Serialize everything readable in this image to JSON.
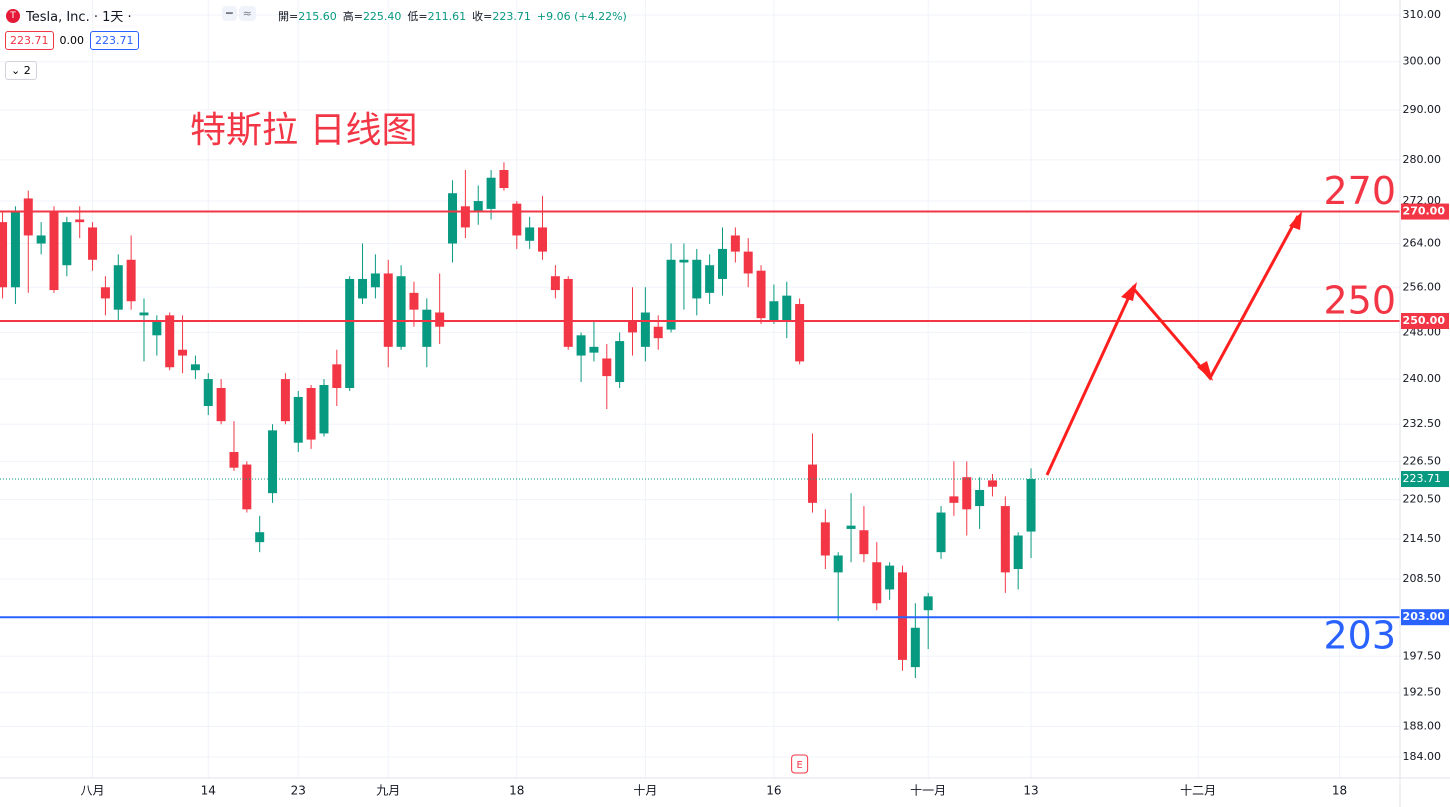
{
  "header": {
    "symbol": "Tesla, Inc. · 1天 ·",
    "ohlc_labels": [
      "開=",
      "高=",
      "低=",
      "收="
    ],
    "ohlc_values": [
      "215.60",
      "225.40",
      "211.61",
      "223.71"
    ],
    "change": "+9.06 (+4.22%)",
    "boxes": [
      "223.71",
      "0.00",
      "223.71"
    ],
    "indicator": "2"
  },
  "chart_data": {
    "type": "candlestick",
    "title": "特斯拉 日线图",
    "log_scale": true,
    "grid": true,
    "up_color": "#089981",
    "down_color": "#f23645",
    "open": [
      268,
      256,
      272.5,
      264,
      270,
      260,
      268.5,
      267,
      256,
      252,
      261,
      251,
      247.5,
      251,
      245,
      241.5,
      235.5,
      238.5,
      228,
      226,
      214,
      221.5,
      240,
      229.5,
      238.5,
      231,
      242.5,
      238.5,
      254,
      256,
      258.5,
      245.5,
      255,
      245.5,
      251.5,
      264,
      271,
      270,
      270.5,
      278,
      271.5,
      264.5,
      267,
      258,
      257.5,
      244,
      244.5,
      243.5,
      239.5,
      250,
      245.5,
      249,
      248.5,
      260.5,
      254,
      255,
      257.5,
      265.5,
      262.5,
      259,
      250,
      250,
      253,
      226,
      217,
      209.5,
      216,
      215.8,
      211,
      207,
      209.5,
      196,
      204,
      212.5,
      221,
      224,
      219.5,
      223.5,
      219.5,
      210,
      215.6
    ],
    "high": [
      270,
      271,
      274,
      268,
      271,
      269,
      271,
      268,
      258,
      262,
      265.5,
      254,
      251,
      251.5,
      251,
      244,
      241,
      240,
      233,
      226.5,
      218,
      232.5,
      241,
      238,
      239,
      240,
      245,
      258,
      264,
      262,
      261,
      260,
      257,
      254,
      258.5,
      276,
      278,
      275,
      278,
      279.5,
      272,
      269,
      273,
      260,
      258,
      248,
      250,
      246,
      248,
      256,
      256,
      251,
      264,
      264,
      263,
      262,
      267,
      267,
      265,
      260,
      256.5,
      257,
      254,
      231,
      219,
      212.5,
      221.5,
      219.5,
      214,
      211,
      210.5,
      205,
      206.5,
      219.5,
      226.5,
      226.5,
      224,
      224.5,
      221,
      215.5,
      225.4
    ],
    "low": [
      254,
      253,
      255,
      262,
      255,
      258,
      265,
      259,
      251,
      250,
      252,
      243,
      244,
      241.5,
      241,
      240,
      234,
      232.5,
      225,
      218.5,
      212.5,
      220,
      232.5,
      228,
      228.5,
      230.5,
      235.5,
      238,
      253,
      254,
      242,
      245,
      249,
      242,
      246,
      260.5,
      265,
      267.5,
      268.5,
      274,
      263,
      263,
      261,
      254,
      245,
      239.5,
      243,
      235,
      238.5,
      244,
      243,
      245,
      248,
      252,
      251,
      253,
      254.5,
      260.5,
      256,
      249.5,
      249.5,
      247,
      242.5,
      218.5,
      210,
      202.5,
      211,
      211,
      204,
      205.5,
      195.5,
      194.5,
      198.5,
      211.5,
      218,
      215,
      216,
      221,
      206.5,
      207,
      211.61
    ],
    "close": [
      256,
      270,
      265.5,
      265.5,
      255.5,
      268,
      268,
      261,
      254,
      260,
      253.5,
      251.5,
      250,
      242,
      244,
      242.5,
      240,
      233,
      225.5,
      219,
      215.5,
      231.5,
      233,
      237,
      230,
      239,
      238.5,
      257.5,
      257.5,
      258.5,
      245.5,
      258,
      252,
      252,
      249,
      273.5,
      267,
      272,
      276.5,
      274.5,
      265.5,
      267,
      262.5,
      255.5,
      245.5,
      247.5,
      245.5,
      240.5,
      246.5,
      248,
      251.5,
      247,
      261,
      261,
      261,
      260,
      263,
      262.5,
      258.5,
      250.5,
      253.5,
      254.5,
      243,
      220,
      212,
      212,
      216.5,
      212.2,
      205,
      210.5,
      197,
      201.5,
      206,
      218.5,
      220,
      219,
      222,
      222.5,
      209.5,
      215,
      223.71
    ],
    "ylim": [
      181.3,
      313.3
    ],
    "yticks": [
      {
        "value": 310,
        "label": "310.00"
      },
      {
        "value": 300,
        "label": "300.00"
      },
      {
        "value": 290,
        "label": "290.00"
      },
      {
        "value": 280,
        "label": "280.00"
      },
      {
        "value": 272,
        "label": "272.00"
      },
      {
        "value": 264,
        "label": "264.00"
      },
      {
        "value": 256,
        "label": "256.00"
      },
      {
        "value": 248,
        "label": "248.00"
      },
      {
        "value": 240,
        "label": "240.00"
      },
      {
        "value": 232.5,
        "label": "232.50"
      },
      {
        "value": 226.5,
        "label": "226.50"
      },
      {
        "value": 220.5,
        "label": "220.50"
      },
      {
        "value": 214.5,
        "label": "214.50"
      },
      {
        "value": 208.5,
        "label": "208.50"
      },
      {
        "value": 197.5,
        "label": "197.50"
      },
      {
        "value": 192.5,
        "label": "192.50"
      },
      {
        "value": 188,
        "label": "188.00"
      },
      {
        "value": 184,
        "label": "184.00"
      }
    ],
    "xlim": [
      -0.2,
      108.7
    ],
    "xticks": [
      {
        "value": 7,
        "label": "八月"
      },
      {
        "value": 16,
        "label": "14"
      },
      {
        "value": 23,
        "label": "23"
      },
      {
        "value": 30,
        "label": "九月"
      },
      {
        "value": 40,
        "label": "18"
      },
      {
        "value": 50,
        "label": "十月"
      },
      {
        "value": 60,
        "label": "16"
      },
      {
        "value": 72,
        "label": "十一月"
      },
      {
        "value": 80,
        "label": "13"
      },
      {
        "value": 93,
        "label": "十二月"
      },
      {
        "value": 104,
        "label": "18"
      }
    ],
    "hlines": [
      {
        "value": 270,
        "axis_label": "270.00",
        "text": "270",
        "color": "#f23645",
        "side": "above"
      },
      {
        "value": 250,
        "axis_label": "250.00",
        "text": "250",
        "color": "#f23645",
        "side": "above"
      },
      {
        "value": 203,
        "axis_label": "203.00",
        "text": "203",
        "color": "#2962ff",
        "side": "below"
      }
    ],
    "last_price": {
      "value": 223.71,
      "label": "223.71",
      "color": "#089981"
    },
    "events": [
      {
        "x": 62,
        "label": "E"
      }
    ]
  }
}
